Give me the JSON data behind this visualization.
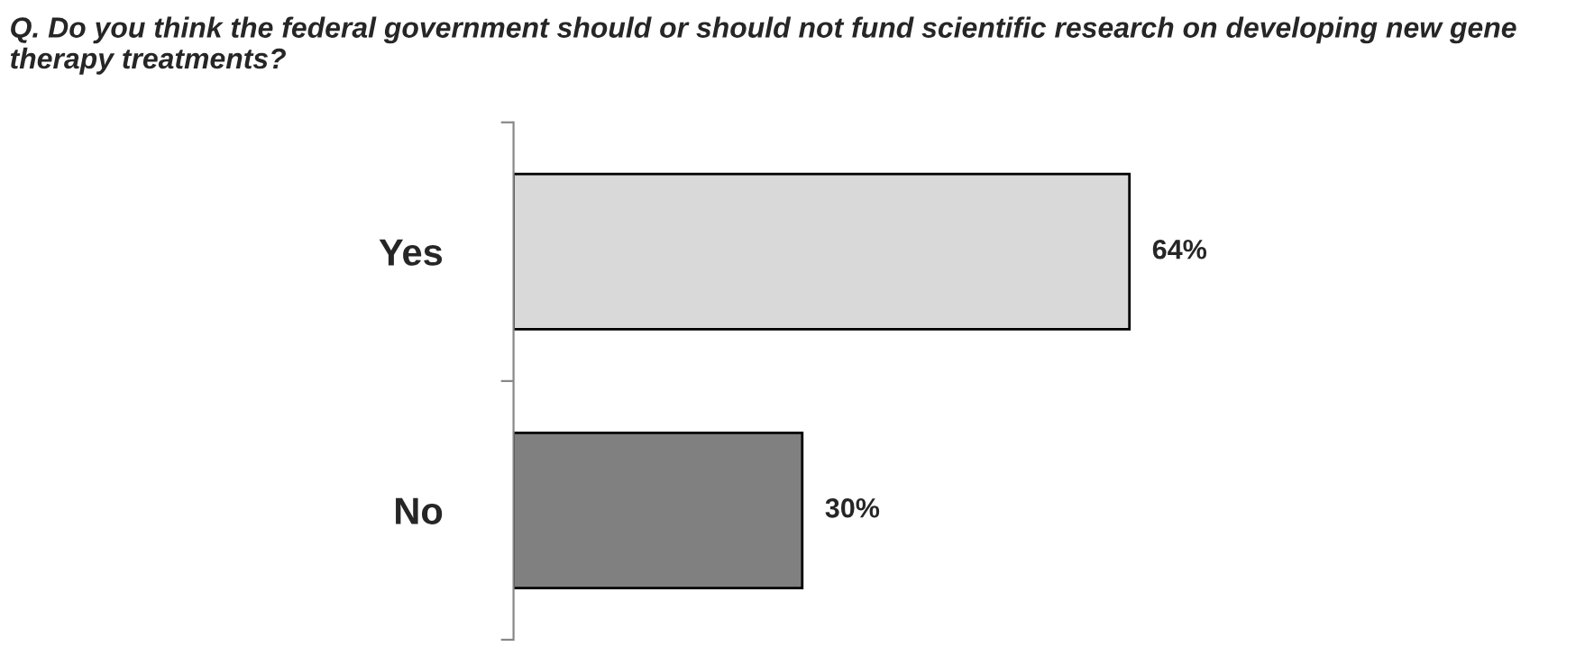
{
  "chart_data": {
    "type": "bar",
    "orientation": "horizontal",
    "title": "Q. Do you think the federal government should or should not fund scientific research on developing new gene therapy treatments?",
    "categories": [
      "Yes",
      "No"
    ],
    "values": [
      64,
      30
    ],
    "colors": [
      "#d9d9d9",
      "#808080"
    ],
    "value_labels": [
      "64%",
      "30%"
    ],
    "grid": false,
    "legend": false
  }
}
